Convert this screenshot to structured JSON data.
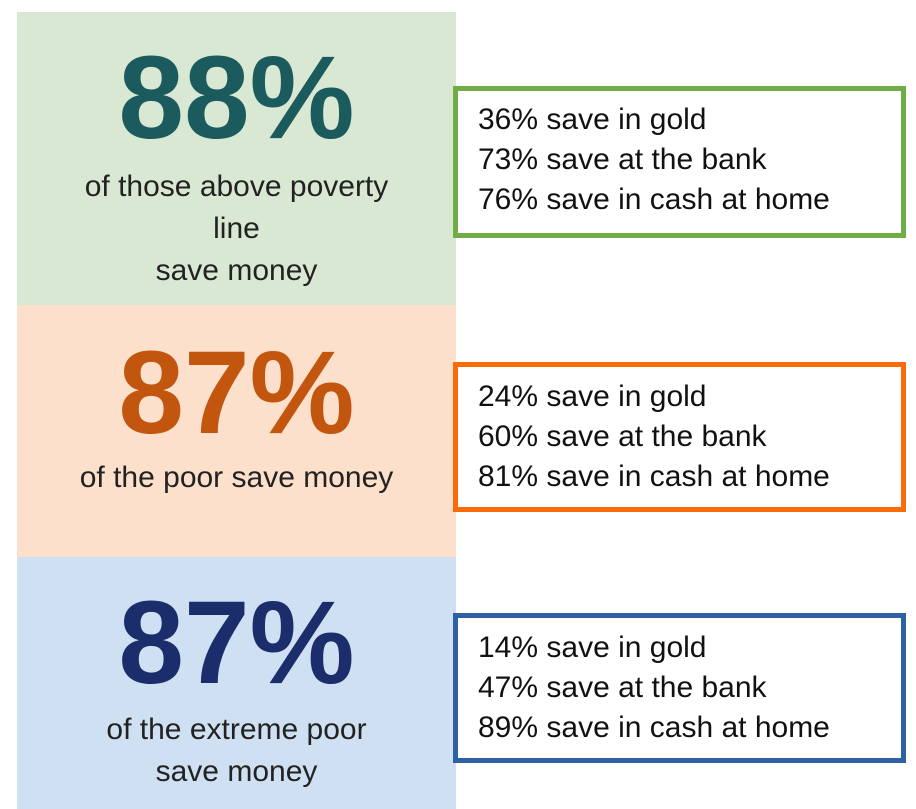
{
  "groups": [
    {
      "headline": "88%",
      "description": [
        "of those above poverty",
        "line",
        "save money"
      ],
      "details": [
        "36% save in gold",
        "73% save at the bank",
        "76% save in cash at home"
      ]
    },
    {
      "headline": "87%",
      "description": [
        "of the poor save money"
      ],
      "details": [
        "24% save in gold",
        "60% save at the bank",
        "81% save in cash at home"
      ]
    },
    {
      "headline": "87%",
      "description": [
        "of the extreme poor",
        "save money"
      ],
      "details": [
        "14% save in gold",
        "47% save at the bank",
        "89% save in cash at home"
      ]
    }
  ]
}
